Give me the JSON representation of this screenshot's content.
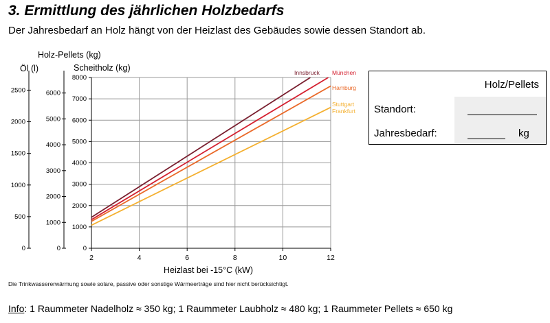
{
  "heading": "3. Ermittlung des jährlichen Holzbedarfs",
  "intro": "Der Jahresbedarf an Holz hängt von der Heizlast des Gebäudes sowie dessen Standort ab.",
  "footnote": "Die Trinkwassererwärmung sowie solare, passive oder sonstige Wärmeerträge sind hier nicht berücksichtigt.",
  "info": {
    "label": "Info",
    "text": ": 1 Raummeter Nadelholz ≈ 350 kg; 1 Raummeter Laubholz ≈ 480 kg; 1 Raummeter Pellets ≈ 650 kg"
  },
  "form_box": {
    "header": "Holz/Pellets",
    "standort_label": "Standort:",
    "jahresbedarf_label": "Jahresbedarf:",
    "unit": "kg"
  },
  "chart_data": {
    "type": "line",
    "xlabel": "Heizlast bei -15°C (kW)",
    "xlim": [
      2,
      12
    ],
    "x_ticks": [
      2,
      4,
      6,
      8,
      10,
      12
    ],
    "y_axes": [
      {
        "label": "Scheitholz (kg)",
        "lim": [
          0,
          8000
        ],
        "ticks": [
          0,
          1000,
          2000,
          3000,
          4000,
          5000,
          6000,
          7000,
          8000
        ]
      },
      {
        "label": "Holz-Pellets (kg)",
        "lim": [
          0,
          6600
        ],
        "ticks": [
          0,
          1000,
          2000,
          3000,
          4000,
          5000,
          6000
        ]
      },
      {
        "label": "Öl (l)",
        "lim": [
          0,
          2700
        ],
        "ticks": [
          0,
          500,
          1000,
          1500,
          2000,
          2500
        ]
      }
    ],
    "grid": true,
    "series": [
      {
        "name": "Innsbruck",
        "color": "#7a2030",
        "x": [
          2,
          11.15
        ],
        "y": [
          1450,
          8000
        ]
      },
      {
        "name": "München",
        "color": "#d42030",
        "x": [
          2,
          11.9
        ],
        "y": [
          1340,
          8000
        ]
      },
      {
        "name": "Hamburg",
        "color": "#ea6a2a",
        "x": [
          2,
          12
        ],
        "y": [
          1260,
          7600
        ]
      },
      {
        "name": "Stuttgart Frankfurt",
        "color": "#f4b030",
        "x": [
          2,
          12
        ],
        "y": [
          1080,
          6600
        ]
      }
    ]
  }
}
